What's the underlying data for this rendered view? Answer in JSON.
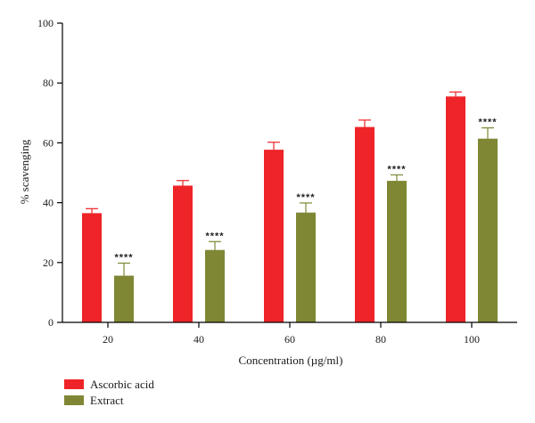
{
  "chart_data": {
    "type": "bar",
    "categories": [
      "20",
      "40",
      "60",
      "80",
      "100"
    ],
    "series": [
      {
        "name": "Ascorbic acid",
        "color": "#ee2428",
        "values": [
          36.5,
          45.7,
          57.7,
          65.3,
          75.5
        ],
        "errors": [
          1.5,
          1.7,
          2.5,
          2.3,
          1.5
        ],
        "annotations": [
          "",
          "",
          "",
          "",
          ""
        ]
      },
      {
        "name": "Extract",
        "color": "#7f8734",
        "values": [
          15.6,
          24.2,
          36.7,
          47.3,
          61.4
        ],
        "errors": [
          4.2,
          2.8,
          3.2,
          2.0,
          3.6
        ],
        "annotations": [
          "****",
          "****",
          "****",
          "****",
          "****"
        ]
      }
    ],
    "xlabel": "Concentration (µg/ml)",
    "ylabel": "% scavenging",
    "ylim": [
      0,
      100
    ],
    "yticks": [
      "0",
      "20",
      "40",
      "60",
      "80",
      "100"
    ],
    "grid": false,
    "legend_position": "bottom-left"
  }
}
